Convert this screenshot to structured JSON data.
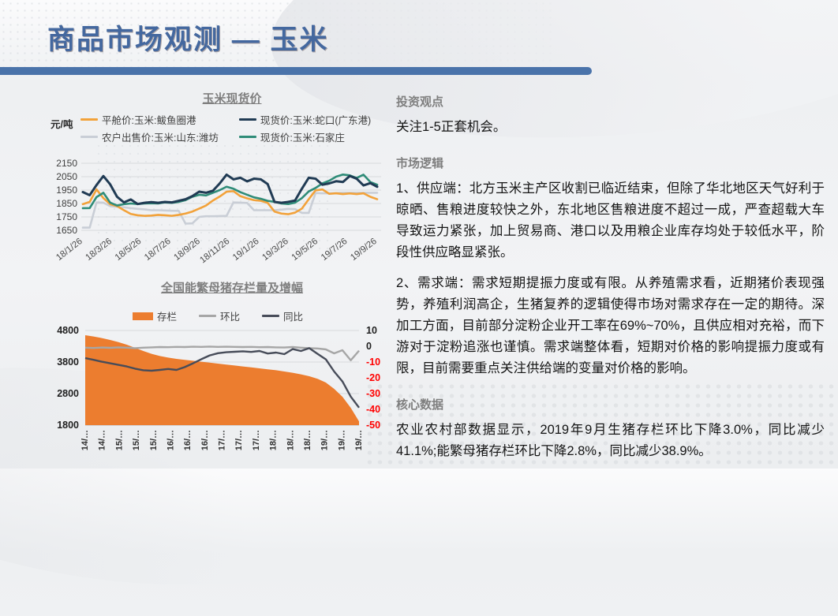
{
  "header": {
    "title": "商品市场观测 — 玉米",
    "title_color": "#44689F",
    "bar_color": "#4A73AA"
  },
  "chart_data": [
    {
      "type": "line",
      "title": "玉米现货价",
      "unit_label": "元/吨",
      "x_labels": [
        "18/1/26",
        "18/3/26",
        "18/5/26",
        "18/7/26",
        "18/9/26",
        "18/11/26",
        "19/1/26",
        "19/3/26",
        "19/5/26",
        "19/7/26",
        "19/9/26"
      ],
      "ylim": [
        1650,
        2150
      ],
      "yticks": [
        2150,
        2050,
        1950,
        1850,
        1750,
        1650
      ],
      "grid": true,
      "legend_position": "top",
      "series": [
        {
          "name": "平舱价:玉米:鲅鱼圈港",
          "marker": "line",
          "color": "#F2A23A",
          "values": [
            1845,
            1862,
            1955,
            1890,
            1845,
            1830,
            1800,
            1772,
            1762,
            1758,
            1760,
            1765,
            1762,
            1758,
            1765,
            1775,
            1790,
            1812,
            1835,
            1872,
            1902,
            1938,
            1942,
            1905,
            1888,
            1875,
            1870,
            1855,
            1790,
            1775,
            1770,
            1782,
            1812,
            1882,
            1948,
            1955,
            1922,
            1926,
            1920,
            1925,
            1920,
            1926,
            1900,
            1882
          ]
        },
        {
          "name": "现货价:玉米:蛇口(广东港)",
          "marker": "line",
          "color": "#203B54",
          "values": [
            1935,
            1912,
            1988,
            2055,
            1992,
            1900,
            1858,
            1880,
            1846,
            1855,
            1860,
            1855,
            1862,
            1858,
            1870,
            1882,
            1905,
            1938,
            1930,
            1945,
            2000,
            2065,
            2030,
            2042,
            2015,
            2035,
            2030,
            1995,
            1862,
            1855,
            1862,
            1872,
            1960,
            2042,
            2035,
            1990,
            2000,
            2016,
            2010,
            2055,
            2035,
            1985,
            2002,
            1975
          ]
        },
        {
          "name": "农户出售价:玉米:山东:潍坊",
          "marker": "line",
          "color": "#C9CED6",
          "values": [
            1670,
            1670,
            1858,
            1856,
            1830,
            1826,
            1822,
            1815,
            1810,
            1806,
            1800,
            1800,
            1798,
            1796,
            1795,
            1700,
            1702,
            1750,
            1755,
            1755,
            1756,
            1758,
            1858,
            1856,
            1854,
            1800,
            1800,
            1800,
            1800,
            1804,
            1810,
            1808,
            1780,
            1780,
            1928,
            1926,
            1926,
            1928,
            1930,
            1930,
            1930,
            1930,
            1930,
            1930
          ]
        },
        {
          "name": "现货价:玉米:石家庄",
          "marker": "line",
          "color": "#2F8C78",
          "values": [
            1815,
            1816,
            1898,
            1930,
            1856,
            1835,
            1845,
            1850,
            1846,
            1850,
            1852,
            1850,
            1858,
            1855,
            1862,
            1875,
            1900,
            1915,
            1910,
            1930,
            1950,
            1975,
            1960,
            1935,
            1915,
            1896,
            1885,
            1870,
            1862,
            1850,
            1846,
            1856,
            1890,
            1940,
            1966,
            2000,
            2020,
            2050,
            2066,
            2060,
            2040,
            2065,
            2010,
            1990
          ]
        }
      ]
    },
    {
      "type": "area",
      "title": "全国能繁母猪存栏量及增幅",
      "x_labels": [
        "14/…",
        "14/…",
        "15/…",
        "15/…",
        "15/…",
        "16/…",
        "16/…",
        "16/…",
        "17/…",
        "17/…",
        "17/…",
        "18/…",
        "18/…",
        "18/…",
        "19/…",
        "19/…",
        "19/…"
      ],
      "left_ylim": [
        1800,
        4800
      ],
      "left_yticks": [
        4800,
        3800,
        2800,
        1800
      ],
      "right_ylim": [
        -50,
        10
      ],
      "right_yticks": [
        10,
        0,
        -10,
        -20,
        -30,
        -40,
        -50
      ],
      "negative_tick_color": "#FF0000",
      "grid": true,
      "legend_position": "top",
      "series": [
        {
          "name": "存栏",
          "marker": "area",
          "axis": "left",
          "color": "#EC7D2F",
          "values": [
            4650,
            4610,
            4560,
            4500,
            4430,
            4350,
            4250,
            4150,
            4060,
            3990,
            3940,
            3900,
            3870,
            3840,
            3810,
            3780,
            3750,
            3720,
            3690,
            3660,
            3630,
            3600,
            3570,
            3540,
            3500,
            3460,
            3410,
            3350,
            3270,
            3150,
            2950,
            2700,
            2350,
            1920
          ]
        },
        {
          "name": "环比",
          "marker": "line",
          "axis": "right",
          "color": "#A6A6A6",
          "values": [
            -0.9,
            -1.1,
            -0.8,
            -1.0,
            -0.7,
            -0.9,
            -1.2,
            -0.9,
            -0.7,
            -0.5,
            -0.6,
            -0.4,
            -0.5,
            -0.3,
            -0.4,
            -0.2,
            -0.4,
            -0.3,
            -0.4,
            -0.5,
            -0.4,
            -0.6,
            -0.5,
            -0.7,
            -0.8,
            -0.5,
            -0.9,
            -1.2,
            -1.4,
            -2.0,
            -4.5,
            -2.5,
            -8.9,
            -2.8
          ]
        },
        {
          "name": "同比",
          "marker": "line",
          "axis": "right",
          "color": "#474C59",
          "values": [
            -7.5,
            -8.6,
            -9.8,
            -10.8,
            -11.8,
            -12.8,
            -14.2,
            -15.2,
            -15.5,
            -15.0,
            -14.4,
            -15.0,
            -13.2,
            -10.8,
            -8.2,
            -5.8,
            -4.4,
            -3.8,
            -3.5,
            -3.2,
            -3.6,
            -3.0,
            -4.6,
            -4.0,
            -5.0,
            -1.8,
            -3.0,
            -1.2,
            -4.8,
            -8.3,
            -16.0,
            -22.3,
            -31.9,
            -38.9
          ]
        }
      ]
    }
  ],
  "panel": {
    "sections": [
      {
        "heading": "投资观点",
        "paragraphs": [
          "关注1-5正套机会。"
        ]
      },
      {
        "heading": "市场逻辑",
        "paragraphs": [
          "1、供应端：北方玉米主产区收割已临近结束，但除了华北地区天气好利于晾晒、售粮进度较快之外，东北地区售粮进度不超过一成，严查超载大车导致运力紧张，加上贸易商、港口以及用粮企业库存均处于较低水平，阶段性供应略显紧张。",
          "2、需求端：需求短期提振力度或有限。从养殖需求看，近期猪价表现强势，养殖利润高企，生猪复养的逻辑使得市场对需求存在一定的期待。深加工方面，目前部分淀粉企业开工率在69%~70%，且供应相对充裕，而下游对于淀粉追涨也谨慎。需求端整体看，短期对价格的影响提振力度或有限，目前需要重点关注供给端的变量对价格的影响。"
        ]
      },
      {
        "heading": "核心数据",
        "paragraphs": [
          "农业农村部数据显示，2019年9月生猪存栏环比下降3.0%，同比减少41.1%;能繁母猪存栏环比下降2.8%，同比减少38.9%。"
        ]
      }
    ]
  }
}
